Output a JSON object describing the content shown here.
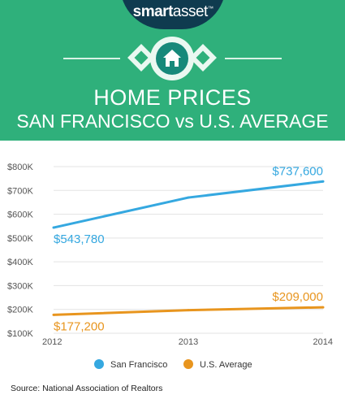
{
  "brand": {
    "part1": "smart",
    "part2": "asset",
    "tm": "™"
  },
  "header_icon": "house-icon",
  "colors": {
    "header_bg": "#2fb07b",
    "brand_bg": "#0f3b4f",
    "badge": "#16897a",
    "sf": "#35a8e0",
    "us": "#e8951e"
  },
  "chart_data": {
    "type": "line",
    "title": "HOME PRICES",
    "subtitle": "SAN FRANCISCO vs U.S. AVERAGE",
    "categories": [
      "2012",
      "2013",
      "2014"
    ],
    "y_ticks": [
      "$100K",
      "$200K",
      "$300K",
      "$400K",
      "$500K",
      "$600K",
      "$700K",
      "$800K"
    ],
    "ylim": [
      100000,
      800000
    ],
    "grid": true,
    "legend_position": "bottom",
    "series": [
      {
        "name": "San Francisco",
        "values": [
          543780,
          670000,
          737600
        ],
        "labels": [
          "$543,780",
          "",
          "$737,600"
        ]
      },
      {
        "name": "U.S. Average",
        "values": [
          177200,
          197000,
          209000
        ],
        "labels": [
          "$177,200",
          "",
          "$209,000"
        ]
      }
    ]
  },
  "source": "Source: National Association of Realtors"
}
